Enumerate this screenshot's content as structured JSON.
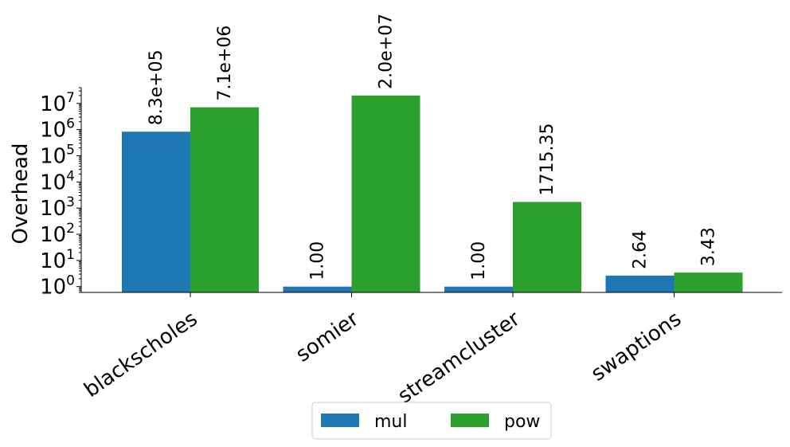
{
  "chart_data": {
    "type": "bar",
    "scale": "log",
    "ylabel": "Overhead",
    "categories": [
      "blackscholes",
      "somier",
      "streamcluster",
      "swaptions"
    ],
    "series": [
      {
        "name": "mul",
        "color": "#1f77b4",
        "values": [
          830000,
          1.0,
          1.0,
          2.64
        ],
        "labels": [
          "8.3e+05",
          "1.00",
          "1.00",
          "2.64"
        ]
      },
      {
        "name": "pow",
        "color": "#2ca02c",
        "values": [
          7100000,
          20000000,
          1715.35,
          3.43
        ],
        "labels": [
          "7.1e+06",
          "2.0e+07",
          "1715.35",
          "3.43"
        ]
      }
    ],
    "yticks": [
      {
        "value": 1,
        "base": "10",
        "exp": "0"
      },
      {
        "value": 10,
        "base": "10",
        "exp": "1"
      },
      {
        "value": 100,
        "base": "10",
        "exp": "2"
      },
      {
        "value": 1000,
        "base": "10",
        "exp": "3"
      },
      {
        "value": 10000,
        "base": "10",
        "exp": "4"
      },
      {
        "value": 100000,
        "base": "10",
        "exp": "5"
      },
      {
        "value": 1000000,
        "base": "10",
        "exp": "6"
      },
      {
        "value": 10000000,
        "base": "10",
        "exp": "7"
      }
    ],
    "ylim": [
      0.6,
      40000000
    ],
    "grid": false,
    "legend_position": "bottom-center"
  }
}
